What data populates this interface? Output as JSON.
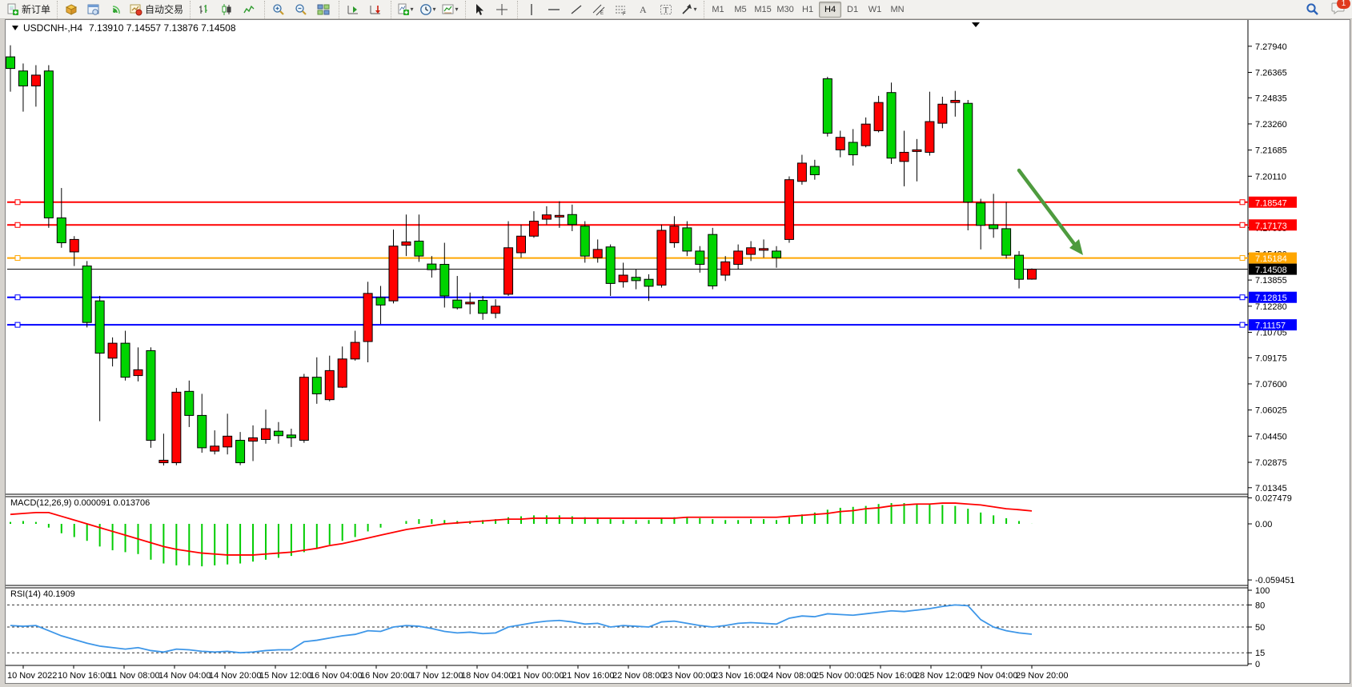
{
  "toolbar": {
    "new_order_label": "新订单",
    "auto_trading_label": "自动交易",
    "timeframes": [
      "M1",
      "M5",
      "M15",
      "M30",
      "H1",
      "H4",
      "D1",
      "W1",
      "MN"
    ],
    "active_timeframe": "H4",
    "notification_count": "1"
  },
  "chart": {
    "symbol_period": "USDCNH-,H4",
    "ohlc_text": "7.13910 7.14557 7.13876 7.14508"
  },
  "indicators": {
    "macd_label": "MACD(12,26,9) 0.000091 0.013706",
    "rsi_label": "RSI(14) 40.1909"
  },
  "price_axis": [
    "7.27940",
    "7.26365",
    "7.24835",
    "7.23260",
    "7.21685",
    "7.20110",
    "7.17005",
    "7.15430",
    "7.13855",
    "7.12280",
    "7.10705",
    "7.09175",
    "7.07600",
    "7.06025",
    "7.04450",
    "7.02875",
    "7.01345"
  ],
  "macd_axis": [
    "0.027479",
    "0.00",
    "-0.059451"
  ],
  "rsi_axis": [
    "100",
    "80",
    "50",
    "15",
    "0"
  ],
  "dates": [
    "10 Nov 2022",
    "10 Nov 16:00",
    "11 Nov 08:00",
    "14 Nov 04:00",
    "14 Nov 20:00",
    "15 Nov 12:00",
    "16 Nov 04:00",
    "16 Nov 20:00",
    "17 Nov 12:00",
    "18 Nov 04:00",
    "21 Nov 00:00",
    "21 Nov 16:00",
    "22 Nov 08:00",
    "23 Nov 00:00",
    "23 Nov 16:00",
    "24 Nov 08:00",
    "25 Nov 00:00",
    "25 Nov 16:00",
    "28 Nov 12:00",
    "29 Nov 04:00",
    "29 Nov 20:00"
  ],
  "chart_data": {
    "type": "candlestick",
    "symbol": "USDCNH-",
    "timeframe": "H4",
    "ohlc_current": {
      "open": 7.1391,
      "high": 7.14557,
      "low": 7.13876,
      "close": 7.14508
    },
    "y_range": [
      7.0095,
      7.2875
    ],
    "up_color": "#ff0000",
    "down_color": "#00d400",
    "candles": [
      [
        7.28,
        7.273,
        7.266,
        7.252,
        "d"
      ],
      [
        7.269,
        7.2645,
        7.2555,
        7.24,
        "d"
      ],
      [
        7.268,
        7.262,
        7.2555,
        7.243,
        "u"
      ],
      [
        7.268,
        7.2645,
        7.176,
        7.17,
        "d"
      ],
      [
        7.194,
        7.176,
        7.161,
        7.158,
        "d"
      ],
      [
        7.165,
        7.163,
        7.1555,
        7.147,
        "u"
      ],
      [
        7.15,
        7.147,
        7.113,
        7.11,
        "d"
      ],
      [
        7.129,
        7.126,
        7.0945,
        7.0535,
        "d"
      ],
      [
        7.104,
        7.1005,
        7.0915,
        7.0865,
        "u"
      ],
      [
        7.108,
        7.1005,
        7.08,
        7.078,
        "d"
      ],
      [
        7.098,
        7.0845,
        7.081,
        7.0775,
        "u"
      ],
      [
        7.098,
        7.096,
        7.042,
        7.0375,
        "d"
      ],
      [
        7.046,
        7.03,
        7.0285,
        7.0268,
        "u"
      ],
      [
        7.0735,
        7.071,
        7.0285,
        7.027,
        "u"
      ],
      [
        7.078,
        7.0715,
        7.057,
        7.05,
        "d"
      ],
      [
        7.07,
        7.057,
        7.0375,
        7.0345,
        "d"
      ],
      [
        7.048,
        7.0385,
        7.0355,
        7.0335,
        "u"
      ],
      [
        7.058,
        7.0445,
        7.038,
        7.0335,
        "u"
      ],
      [
        7.047,
        7.042,
        7.0285,
        7.027,
        "d"
      ],
      [
        7.051,
        7.0435,
        7.0415,
        7.0295,
        "u"
      ],
      [
        7.0605,
        7.049,
        7.0425,
        7.04,
        "u"
      ],
      [
        7.053,
        7.0475,
        7.0448,
        7.04,
        "d"
      ],
      [
        7.049,
        7.0452,
        7.0435,
        7.038,
        "d"
      ],
      [
        7.082,
        7.08,
        7.042,
        7.0405,
        "u"
      ],
      [
        7.092,
        7.08,
        7.07,
        7.064,
        "d"
      ],
      [
        7.093,
        7.084,
        7.0665,
        7.0655,
        "u"
      ],
      [
        7.0985,
        7.091,
        7.074,
        7.0735,
        "u"
      ],
      [
        7.108,
        7.101,
        7.091,
        7.09,
        "u"
      ],
      [
        7.1375,
        7.1305,
        7.1015,
        7.089,
        "u"
      ],
      [
        7.135,
        7.128,
        7.1235,
        7.112,
        "d"
      ],
      [
        7.169,
        7.159,
        7.126,
        7.1245,
        "u"
      ],
      [
        7.178,
        7.1615,
        7.1595,
        7.153,
        "u"
      ],
      [
        7.178,
        7.162,
        7.153,
        7.1495,
        "d"
      ],
      [
        7.153,
        7.1482,
        7.1448,
        7.14,
        "d"
      ],
      [
        7.161,
        7.148,
        7.129,
        7.122,
        "d"
      ],
      [
        7.141,
        7.1265,
        7.1218,
        7.1208,
        "d"
      ],
      [
        7.131,
        7.1252,
        7.1242,
        7.118,
        "u"
      ],
      [
        7.129,
        7.1263,
        7.1185,
        7.1146,
        "d"
      ],
      [
        7.127,
        7.1228,
        7.1185,
        7.1155,
        "u"
      ],
      [
        7.174,
        7.158,
        7.13,
        7.129,
        "u"
      ],
      [
        7.172,
        7.165,
        7.155,
        7.152,
        "u"
      ],
      [
        7.18,
        7.174,
        7.165,
        7.164,
        "u"
      ],
      [
        7.183,
        7.1778,
        7.1752,
        7.172,
        "u"
      ],
      [
        7.186,
        7.1775,
        7.1765,
        7.17,
        "u"
      ],
      [
        7.184,
        7.178,
        7.172,
        7.168,
        "d"
      ],
      [
        7.174,
        7.171,
        7.153,
        7.149,
        "d"
      ],
      [
        7.163,
        7.157,
        7.152,
        7.149,
        "u"
      ],
      [
        7.16,
        7.1585,
        7.1365,
        7.129,
        "d"
      ],
      [
        7.149,
        7.1415,
        7.1375,
        7.134,
        "u"
      ],
      [
        7.145,
        7.1402,
        7.1382,
        7.133,
        "d"
      ],
      [
        7.142,
        7.139,
        7.1348,
        7.126,
        "d"
      ],
      [
        7.172,
        7.1685,
        7.1355,
        7.134,
        "u"
      ],
      [
        7.177,
        7.171,
        7.161,
        7.158,
        "u"
      ],
      [
        7.174,
        7.17,
        7.156,
        7.153,
        "d"
      ],
      [
        7.159,
        7.156,
        7.148,
        7.143,
        "d"
      ],
      [
        7.17,
        7.166,
        7.135,
        7.133,
        "d"
      ],
      [
        7.153,
        7.1495,
        7.1415,
        7.138,
        "u"
      ],
      [
        7.16,
        7.156,
        7.148,
        7.145,
        "u"
      ],
      [
        7.162,
        7.158,
        7.154,
        7.15,
        "u"
      ],
      [
        7.163,
        7.1575,
        7.1565,
        7.152,
        "u"
      ],
      [
        7.159,
        7.156,
        7.152,
        7.146,
        "d"
      ],
      [
        7.201,
        7.199,
        7.163,
        7.161,
        "u"
      ],
      [
        7.214,
        7.209,
        7.198,
        7.196,
        "u"
      ],
      [
        7.211,
        7.207,
        7.202,
        7.199,
        "d"
      ],
      [
        7.261,
        7.2598,
        7.227,
        7.225,
        "d"
      ],
      [
        7.2285,
        7.2245,
        7.217,
        7.2125,
        "u"
      ],
      [
        7.2295,
        7.2215,
        7.214,
        7.2075,
        "d"
      ],
      [
        7.2365,
        7.2325,
        7.2195,
        7.2185,
        "u"
      ],
      [
        7.2495,
        7.2455,
        7.2285,
        7.2275,
        "u"
      ],
      [
        7.2575,
        7.2515,
        7.212,
        7.2085,
        "d"
      ],
      [
        7.2285,
        7.2155,
        7.21,
        7.195,
        "u"
      ],
      [
        7.2235,
        7.217,
        7.216,
        7.198,
        "u"
      ],
      [
        7.252,
        7.234,
        7.2155,
        7.2135,
        "u"
      ],
      [
        7.249,
        7.2445,
        7.233,
        7.23,
        "u"
      ],
      [
        7.2525,
        7.2468,
        7.2455,
        7.237,
        "u"
      ],
      [
        7.247,
        7.245,
        7.1855,
        7.1685,
        "d"
      ],
      [
        7.1875,
        7.185,
        7.1715,
        7.157,
        "d"
      ],
      [
        7.1905,
        7.1718,
        7.1695,
        7.164,
        "d"
      ],
      [
        7.1855,
        7.1695,
        7.1535,
        7.1515,
        "d"
      ],
      [
        7.156,
        7.1535,
        7.139,
        7.1335,
        "d"
      ],
      [
        7.14557,
        7.14508,
        7.1391,
        7.13876,
        "u"
      ]
    ],
    "levels": [
      {
        "price": 7.18547,
        "label": "7.18547",
        "color": "#ff0000",
        "width": 2
      },
      {
        "price": 7.17173,
        "label": "7.17173",
        "color": "#ff0000",
        "width": 2
      },
      {
        "price": 7.15184,
        "label": "7.15184",
        "color": "#ffa600",
        "width": 2
      },
      {
        "price": 7.14508,
        "label": "7.14508",
        "color": "#000000",
        "width": 1,
        "thin": true
      },
      {
        "price": 7.12815,
        "label": "7.12815",
        "color": "#0000ff",
        "width": 2
      },
      {
        "price": 7.11157,
        "label": "7.11157",
        "color": "#0000ff",
        "width": 2
      }
    ],
    "macd": {
      "params": "12,26,9",
      "value": 9.1e-05,
      "signal_value": 0.013706,
      "axis_values": [
        0.027479,
        0,
        -0.059451
      ],
      "histogram": [
        0.002,
        0.003,
        0.002,
        -0.004,
        -0.01,
        -0.014,
        -0.018,
        -0.024,
        -0.028,
        -0.03,
        -0.032,
        -0.038,
        -0.042,
        -0.044,
        -0.044,
        -0.045,
        -0.044,
        -0.043,
        -0.042,
        -0.04,
        -0.038,
        -0.036,
        -0.034,
        -0.03,
        -0.026,
        -0.022,
        -0.018,
        -0.014,
        -0.008,
        -0.004,
        0.0,
        0.003,
        0.005,
        0.005,
        0.004,
        0.003,
        0.003,
        0.004,
        0.005,
        0.007,
        0.008,
        0.009,
        0.009,
        0.009,
        0.008,
        0.007,
        0.006,
        0.005,
        0.004,
        0.004,
        0.004,
        0.006,
        0.007,
        0.007,
        0.006,
        0.005,
        0.004,
        0.004,
        0.005,
        0.005,
        0.004,
        0.007,
        0.01,
        0.012,
        0.015,
        0.017,
        0.018,
        0.019,
        0.021,
        0.022,
        0.022,
        0.021,
        0.021,
        0.02,
        0.019,
        0.016,
        0.012,
        0.009,
        0.006,
        0.003,
        9.1e-05
      ],
      "signal": [
        0.01,
        0.011,
        0.012,
        0.012,
        0.008,
        0.004,
        0.0,
        -0.004,
        -0.008,
        -0.012,
        -0.016,
        -0.02,
        -0.024,
        -0.027,
        -0.029,
        -0.031,
        -0.032,
        -0.033,
        -0.033,
        -0.033,
        -0.032,
        -0.031,
        -0.03,
        -0.028,
        -0.026,
        -0.023,
        -0.021,
        -0.018,
        -0.015,
        -0.012,
        -0.009,
        -0.006,
        -0.004,
        -0.002,
        0.0,
        0.001,
        0.002,
        0.003,
        0.004,
        0.005,
        0.005,
        0.006,
        0.006,
        0.006,
        0.006,
        0.006,
        0.006,
        0.006,
        0.006,
        0.006,
        0.006,
        0.006,
        0.006,
        0.007,
        0.007,
        0.007,
        0.007,
        0.007,
        0.007,
        0.007,
        0.007,
        0.008,
        0.009,
        0.01,
        0.011,
        0.013,
        0.014,
        0.016,
        0.017,
        0.019,
        0.02,
        0.021,
        0.021,
        0.022,
        0.022,
        0.021,
        0.02,
        0.018,
        0.016,
        0.015,
        0.0137
      ]
    },
    "rsi": {
      "period": 14,
      "value": 40.1909,
      "levels": [
        80,
        50,
        15
      ],
      "values": [
        52,
        51,
        52,
        45,
        38,
        33,
        28,
        24,
        22,
        20,
        22,
        18,
        16,
        20,
        19,
        17,
        16,
        17,
        15,
        16,
        18,
        19,
        19,
        30,
        32,
        35,
        38,
        40,
        45,
        44,
        50,
        52,
        51,
        48,
        44,
        42,
        43,
        41,
        42,
        50,
        53,
        56,
        58,
        59,
        57,
        54,
        55,
        50,
        52,
        51,
        50,
        57,
        58,
        55,
        52,
        50,
        52,
        55,
        56,
        55,
        54,
        62,
        65,
        64,
        68,
        67,
        66,
        68,
        70,
        72,
        71,
        73,
        75,
        78,
        80,
        79,
        60,
        50,
        45,
        42,
        40.19
      ]
    },
    "annotation_arrow": {
      "from": [
        1272,
        212
      ],
      "to": [
        1341,
        304
      ],
      "tip": [
        1352,
        318
      ],
      "color": "#4e9b3e"
    }
  }
}
